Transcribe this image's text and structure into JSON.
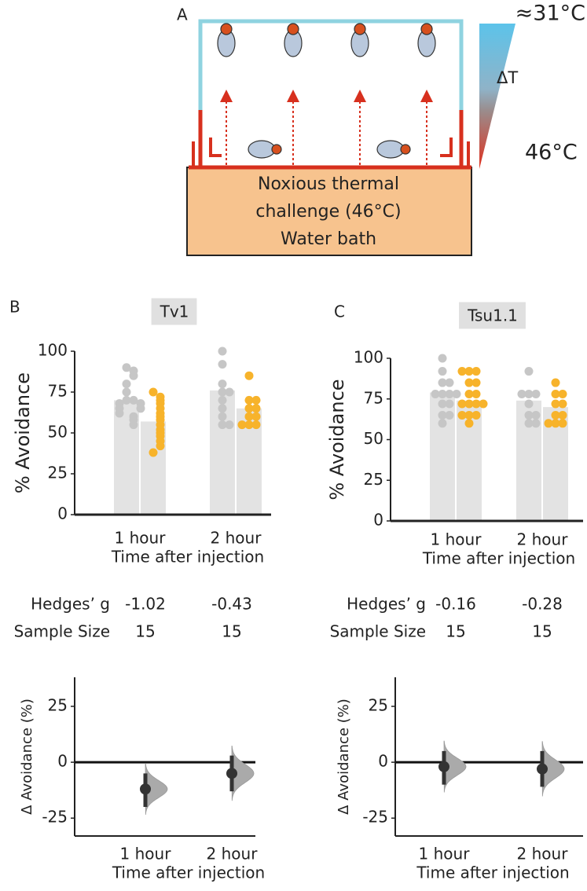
{
  "diagram": {
    "label": "A",
    "top_temp": "≈31°C",
    "delta": "ΔT",
    "bottom_temp": "46°C",
    "bath_lines": [
      "Noxious thermal",
      "challenge (46°C)",
      "Water bath"
    ]
  },
  "chart_data": [
    {
      "type": "swarmbar",
      "panel": "B",
      "title": "Tv1",
      "y_label": "% Avoidance",
      "x_label": "Time after injection",
      "categories": [
        "1 hour",
        "2 hour"
      ],
      "ylim": [
        0,
        100
      ],
      "yticks": [
        0,
        25,
        50,
        75,
        100
      ],
      "series": [
        {
          "bar_color": "#e3e3e3",
          "point_color": "#c6c6c6",
          "values": [
            70,
            76
          ],
          "points": [
            [
              90,
              88,
              85,
              80,
              75,
              70,
              70,
              68,
              68,
              65,
              65,
              62,
              60,
              58,
              55
            ],
            [
              100,
              92,
              80,
              75,
              75,
              70,
              65,
              60,
              55,
              55
            ]
          ]
        },
        {
          "bar_color": "#e3e3e3",
          "point_color": "#f7b32b",
          "values": [
            57,
            65
          ],
          "points": [
            [
              75,
              72,
              70,
              68,
              65,
              62,
              60,
              58,
              55,
              52,
              50,
              48,
              45,
              42,
              38
            ],
            [
              85,
              70,
              70,
              65,
              65,
              60,
              60,
              55,
              55,
              55
            ]
          ]
        }
      ],
      "stats": [
        {
          "label": "Hedges’ g",
          "values": [
            -1.02,
            -0.43
          ]
        },
        {
          "label": "Sample Size",
          "values": [
            15,
            15
          ]
        }
      ]
    },
    {
      "type": "effect",
      "y_label": "Δ Avoidance (%)",
      "x_label": "Time after injection",
      "categories": [
        "1 hour",
        "2 hour"
      ],
      "ylim": [
        -33,
        38
      ],
      "yticks": [
        25,
        0,
        -25
      ],
      "values": [
        -12,
        -5
      ],
      "ci_low": [
        -20,
        -13
      ],
      "ci_high": [
        -5,
        3
      ],
      "color": "#333333",
      "violin_color": "#aaaaaa"
    },
    {
      "type": "swarmbar",
      "panel": "C",
      "title": "Tsu1.1",
      "y_label": "% Avoidance",
      "x_label": "Time after injection",
      "categories": [
        "1 hour",
        "2 hour"
      ],
      "ylim": [
        0,
        100
      ],
      "yticks": [
        0,
        25,
        50,
        75,
        100
      ],
      "series": [
        {
          "bar_color": "#e3e3e3",
          "point_color": "#c6c6c6",
          "values": [
            79,
            74
          ],
          "points": [
            [
              100,
              92,
              85,
              85,
              78,
              78,
              78,
              78,
              72,
              72,
              65,
              65,
              60
            ],
            [
              92,
              78,
              78,
              78,
              72,
              65,
              65,
              60,
              60
            ]
          ]
        },
        {
          "bar_color": "#e3e3e3",
          "point_color": "#f7b32b",
          "values": [
            74,
            70
          ],
          "points": [
            [
              92,
              92,
              92,
              85,
              85,
              78,
              78,
              72,
              72,
              72,
              72,
              65,
              65,
              65,
              60
            ],
            [
              85,
              78,
              78,
              72,
              72,
              65,
              65,
              60,
              60,
              60
            ]
          ]
        }
      ],
      "stats": [
        {
          "label": "Hedges’ g",
          "values": [
            -0.16,
            -0.28
          ]
        },
        {
          "label": "Sample Size",
          "values": [
            15,
            15
          ]
        }
      ]
    },
    {
      "type": "effect",
      "y_label": "Δ Avoidance (%)",
      "x_label": "Time after injection",
      "categories": [
        "1 hour",
        "2 hour"
      ],
      "ylim": [
        -33,
        38
      ],
      "yticks": [
        25,
        0,
        -25
      ],
      "values": [
        -2,
        -3
      ],
      "ci_low": [
        -10,
        -11
      ],
      "ci_high": [
        5,
        5
      ],
      "color": "#333333",
      "violin_color": "#aaaaaa"
    }
  ]
}
